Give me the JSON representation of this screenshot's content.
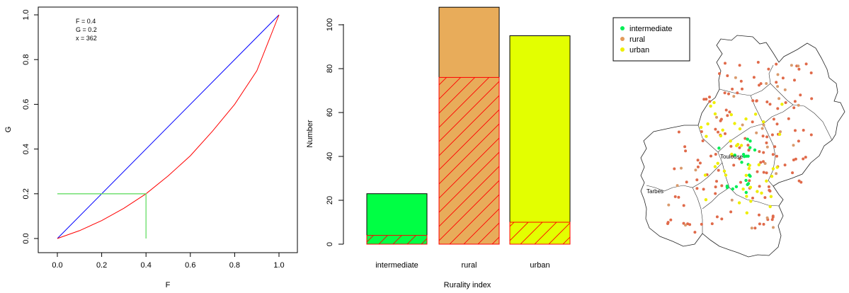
{
  "chart_data": [
    {
      "type": "line",
      "xlabel": "F",
      "ylabel": "G",
      "xlim": [
        0,
        1
      ],
      "ylim": [
        0,
        1
      ],
      "xticks": [
        "0.0",
        "0.2",
        "0.4",
        "0.6",
        "0.8",
        "1.0"
      ],
      "yticks": [
        "0.0",
        "0.2",
        "0.4",
        "0.6",
        "0.8",
        "1.0"
      ],
      "series": [
        {
          "color": "#0000ff",
          "x": [
            0,
            1
          ],
          "y": [
            0,
            1
          ]
        },
        {
          "color": "#ff0000",
          "x": [
            0,
            0.1,
            0.2,
            0.3,
            0.4,
            0.5,
            0.6,
            0.7,
            0.8,
            0.9,
            1.0
          ],
          "y": [
            0,
            0.035,
            0.08,
            0.135,
            0.2,
            0.28,
            0.37,
            0.48,
            0.6,
            0.75,
            1.0
          ]
        }
      ],
      "highlight": {
        "color": "#66dd66",
        "F": 0.4,
        "G": 0.2
      },
      "annotations": [
        "F =  0.4",
        "G =  0.2",
        "x =  362"
      ]
    },
    {
      "type": "bar",
      "xlabel": "Rurality index",
      "ylabel": "Number",
      "ylim": [
        0,
        110
      ],
      "yticks": [
        "0",
        "20",
        "40",
        "60",
        "80",
        "100"
      ],
      "categories": [
        "intermediate",
        "rural",
        "urban"
      ],
      "values": [
        23,
        108,
        95
      ],
      "highlighted": [
        4,
        76,
        10
      ],
      "colors": [
        "#00ff44",
        "#e8ac5a",
        "#e3ff00"
      ],
      "hatch_color": "#ff0000"
    },
    {
      "type": "scatter",
      "legend": {
        "position": "top-left",
        "entries": [
          {
            "label": "intermediate",
            "color": "#00ee55"
          },
          {
            "label": "rural",
            "color": "#e39a5a"
          },
          {
            "label": "urban",
            "color": "#eeee00"
          }
        ]
      },
      "cities": [
        "Toulouse",
        "Tarbes"
      ]
    }
  ]
}
